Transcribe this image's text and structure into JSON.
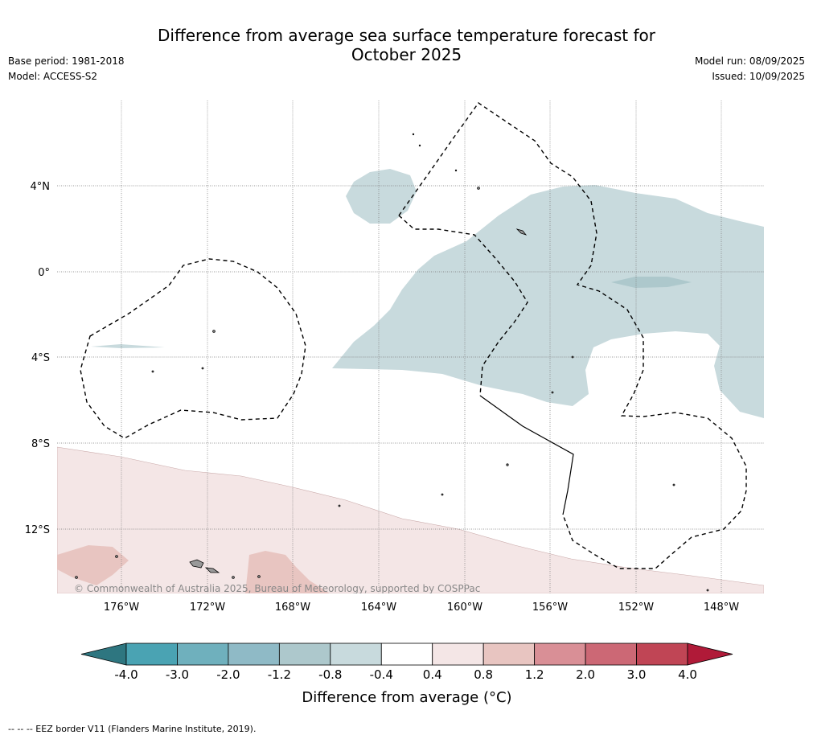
{
  "title_line1": "Difference from average sea surface temperature forecast for",
  "title_line2": "October 2025",
  "base_period": "Base period: 1981-2018",
  "model": "Model: ACCESS-S2",
  "model_run": "Model run: 08/09/2025",
  "issued": "Issued: 10/09/2025",
  "copyright": "© Commonwealth of Australia 2025, Bureau of Meteorology, supported by COSPPac",
  "lon_labels": [
    "176°W",
    "172°W",
    "168°W",
    "164°W",
    "160°W",
    "156°W",
    "152°W",
    "148°W"
  ],
  "lat_labels": [
    "4°N",
    "0°",
    "4°S",
    "8°S",
    "12°S"
  ],
  "colorbar": {
    "label": "Difference from average (°C)",
    "ticks": [
      "-4.0",
      "-3.0",
      "-2.0",
      "-1.2",
      "-0.8",
      "-0.4",
      "0.4",
      "0.8",
      "1.2",
      "2.0",
      "3.0",
      "4.0"
    ],
    "colors": [
      "#4aa3b3",
      "#6fb0bd",
      "#8fbac6",
      "#adc8cc",
      "#c8dadd",
      "#ffffff",
      "#f4e6e6",
      "#e8c5c1",
      "#d98f96",
      "#cc6875",
      "#c04555"
    ],
    "under_color": "#2e7680",
    "over_color": "#b01a38"
  },
  "footnote": "--  --  -- EEZ border V11 (Flanders Marine Institute, 2019)."
}
